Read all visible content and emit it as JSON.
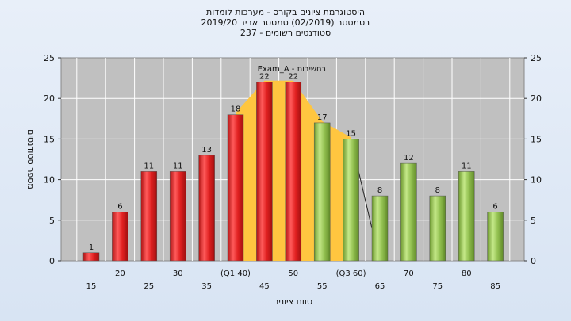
{
  "title_lines": [
    "היסטוגרמת ציונים בקורס - מערכות לומדות",
    "בסמסטר  (02/2019)  סמסטר אביב 2019/20",
    "סטודנטים רשומים - 237"
  ],
  "chart_data": {
    "type": "bar",
    "categories": [
      "15",
      "20",
      "25",
      "30",
      "35",
      "(Q1 40)",
      "45",
      "50",
      "55",
      "(Q3 60)",
      "65",
      "70",
      "75",
      "80",
      "85"
    ],
    "values": [
      1,
      6,
      11,
      11,
      13,
      18,
      22,
      22,
      17,
      15,
      8,
      12,
      8,
      11,
      6
    ],
    "bar_colors": [
      "red",
      "red",
      "red",
      "red",
      "red",
      "red",
      "red",
      "red",
      "green",
      "green",
      "green",
      "green",
      "green",
      "green",
      "green"
    ],
    "ylim": [
      0,
      25
    ],
    "yticks": [
      0,
      5,
      10,
      15,
      20,
      25
    ],
    "xlabel": "טווח ציונים",
    "ylabel": "מספר סטודנטים",
    "annotation": "Exam_A - בחשיבות",
    "grid": true,
    "colors": {
      "plot_bg": "#c0c0c0",
      "red": "#e02020",
      "green": "#92c050",
      "highlight": "#ffc640"
    }
  }
}
